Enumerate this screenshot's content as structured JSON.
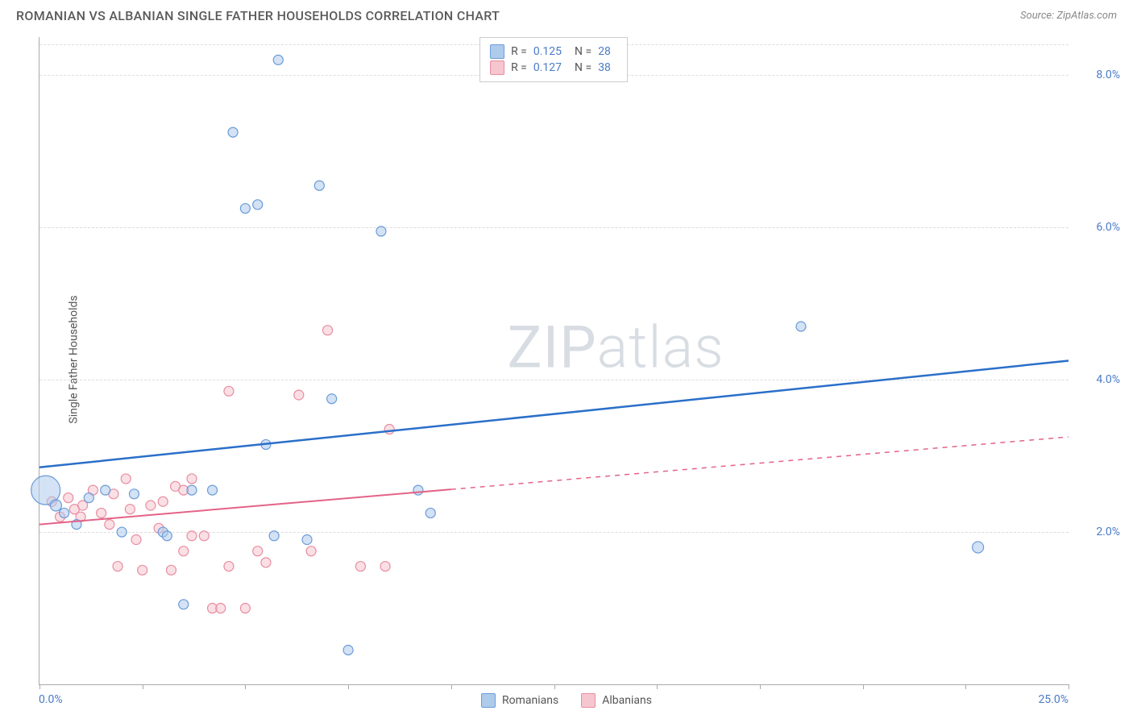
{
  "header": {
    "title": "ROMANIAN VS ALBANIAN SINGLE FATHER HOUSEHOLDS CORRELATION CHART",
    "source_prefix": "Source: ",
    "source": "ZipAtlas.com"
  },
  "chart": {
    "type": "scatter",
    "ylabel": "Single Father Households",
    "x_min": 0.0,
    "x_max": 25.0,
    "y_min": 0.0,
    "y_max": 8.5,
    "x_min_label": "0.0%",
    "x_max_label": "25.0%",
    "y_ticks": [
      {
        "v": 2.0,
        "label": "2.0%"
      },
      {
        "v": 4.0,
        "label": "4.0%"
      },
      {
        "v": 6.0,
        "label": "6.0%"
      },
      {
        "v": 8.0,
        "label": "8.0%"
      }
    ],
    "x_ticks": [
      0,
      2.5,
      5,
      7.5,
      10,
      12.5,
      15,
      17.5,
      20,
      22.5,
      25
    ],
    "grid_color": "#dddddd",
    "background_color": "#ffffff",
    "watermark": "ZIPatlas",
    "series": [
      {
        "name": "Romanians",
        "color_fill": "#aecbeb",
        "color_stroke": "#6a9bd8",
        "line_color": "#2a6fc9",
        "r_label": "R =",
        "r_value": "0.125",
        "n_label": "N =",
        "n_value": "28",
        "trend_start": {
          "x": 0.0,
          "y": 2.85
        },
        "trend_end": {
          "x": 25.0,
          "y": 4.25
        },
        "trend_dash_from_x": null,
        "points": [
          {
            "x": 0.15,
            "y": 2.55,
            "r": 18
          },
          {
            "x": 0.4,
            "y": 2.35,
            "r": 7
          },
          {
            "x": 0.6,
            "y": 2.25,
            "r": 6
          },
          {
            "x": 0.9,
            "y": 2.1,
            "r": 6
          },
          {
            "x": 1.2,
            "y": 2.45,
            "r": 6
          },
          {
            "x": 1.6,
            "y": 2.55,
            "r": 6
          },
          {
            "x": 2.0,
            "y": 2.0,
            "r": 6
          },
          {
            "x": 2.3,
            "y": 2.5,
            "r": 6
          },
          {
            "x": 3.0,
            "y": 2.0,
            "r": 6
          },
          {
            "x": 3.1,
            "y": 1.95,
            "r": 6
          },
          {
            "x": 3.5,
            "y": 1.05,
            "r": 6
          },
          {
            "x": 3.7,
            "y": 2.55,
            "r": 6
          },
          {
            "x": 4.2,
            "y": 2.55,
            "r": 6
          },
          {
            "x": 4.7,
            "y": 7.25,
            "r": 6
          },
          {
            "x": 5.0,
            "y": 6.25,
            "r": 6
          },
          {
            "x": 5.3,
            "y": 6.3,
            "r": 6
          },
          {
            "x": 5.5,
            "y": 3.15,
            "r": 6
          },
          {
            "x": 5.7,
            "y": 1.95,
            "r": 6
          },
          {
            "x": 5.8,
            "y": 8.2,
            "r": 6
          },
          {
            "x": 6.5,
            "y": 1.9,
            "r": 6
          },
          {
            "x": 6.8,
            "y": 6.55,
            "r": 6
          },
          {
            "x": 7.1,
            "y": 3.75,
            "r": 6
          },
          {
            "x": 7.5,
            "y": 0.45,
            "r": 6
          },
          {
            "x": 8.3,
            "y": 5.95,
            "r": 6
          },
          {
            "x": 9.2,
            "y": 2.55,
            "r": 6
          },
          {
            "x": 9.5,
            "y": 2.25,
            "r": 6
          },
          {
            "x": 18.5,
            "y": 4.7,
            "r": 6
          },
          {
            "x": 22.8,
            "y": 1.8,
            "r": 7
          }
        ]
      },
      {
        "name": "Albanians",
        "color_fill": "#f6c6cf",
        "color_stroke": "#e88ca0",
        "line_color": "#e36387",
        "r_label": "R =",
        "r_value": "0.127",
        "n_label": "N =",
        "n_value": "38",
        "trend_start": {
          "x": 0.0,
          "y": 2.1
        },
        "trend_end": {
          "x": 25.0,
          "y": 3.25
        },
        "trend_dash_from_x": 10.0,
        "points": [
          {
            "x": 0.3,
            "y": 2.4,
            "r": 6
          },
          {
            "x": 0.5,
            "y": 2.2,
            "r": 6
          },
          {
            "x": 0.7,
            "y": 2.45,
            "r": 6
          },
          {
            "x": 0.85,
            "y": 2.3,
            "r": 6
          },
          {
            "x": 1.0,
            "y": 2.2,
            "r": 6
          },
          {
            "x": 1.05,
            "y": 2.35,
            "r": 6
          },
          {
            "x": 1.3,
            "y": 2.55,
            "r": 6
          },
          {
            "x": 1.5,
            "y": 2.25,
            "r": 6
          },
          {
            "x": 1.7,
            "y": 2.1,
            "r": 6
          },
          {
            "x": 1.8,
            "y": 2.5,
            "r": 6
          },
          {
            "x": 1.9,
            "y": 1.55,
            "r": 6
          },
          {
            "x": 2.1,
            "y": 2.7,
            "r": 6
          },
          {
            "x": 2.2,
            "y": 2.3,
            "r": 6
          },
          {
            "x": 2.35,
            "y": 1.9,
            "r": 6
          },
          {
            "x": 2.5,
            "y": 1.5,
            "r": 6
          },
          {
            "x": 2.7,
            "y": 2.35,
            "r": 6
          },
          {
            "x": 2.9,
            "y": 2.05,
            "r": 6
          },
          {
            "x": 3.0,
            "y": 2.4,
            "r": 6
          },
          {
            "x": 3.2,
            "y": 1.5,
            "r": 6
          },
          {
            "x": 3.3,
            "y": 2.6,
            "r": 6
          },
          {
            "x": 3.5,
            "y": 2.55,
            "r": 6
          },
          {
            "x": 3.5,
            "y": 1.75,
            "r": 6
          },
          {
            "x": 3.7,
            "y": 1.95,
            "r": 6
          },
          {
            "x": 3.7,
            "y": 2.7,
            "r": 6
          },
          {
            "x": 4.0,
            "y": 1.95,
            "r": 6
          },
          {
            "x": 4.2,
            "y": 1.0,
            "r": 6
          },
          {
            "x": 4.4,
            "y": 1.0,
            "r": 6
          },
          {
            "x": 4.6,
            "y": 1.55,
            "r": 6
          },
          {
            "x": 4.6,
            "y": 3.85,
            "r": 6
          },
          {
            "x": 5.0,
            "y": 1.0,
            "r": 6
          },
          {
            "x": 5.3,
            "y": 1.75,
            "r": 6
          },
          {
            "x": 5.5,
            "y": 1.6,
            "r": 6
          },
          {
            "x": 6.3,
            "y": 3.8,
            "r": 6
          },
          {
            "x": 6.6,
            "y": 1.75,
            "r": 6
          },
          {
            "x": 7.0,
            "y": 4.65,
            "r": 6
          },
          {
            "x": 7.8,
            "y": 1.55,
            "r": 6
          },
          {
            "x": 8.4,
            "y": 1.55,
            "r": 6
          },
          {
            "x": 8.5,
            "y": 3.35,
            "r": 6
          }
        ]
      }
    ],
    "legend_bottom": [
      {
        "label": "Romanians",
        "fill": "#aecbeb",
        "stroke": "#6a9bd8"
      },
      {
        "label": "Albanians",
        "fill": "#f6c6cf",
        "stroke": "#e88ca0"
      }
    ]
  }
}
